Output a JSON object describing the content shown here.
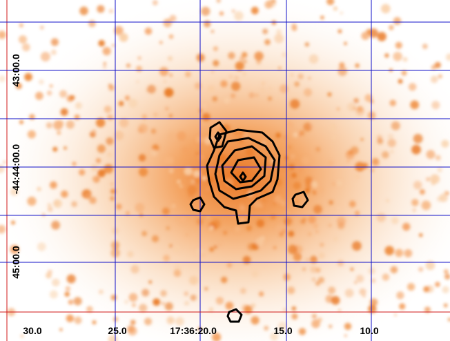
{
  "x_labels": [
    "30.0",
    "25.0",
    "17:36:20.0",
    "15.0",
    "10.0"
  ],
  "y_labels": [
    "43:00.0",
    "-44:44:00.0",
    "45:00.0"
  ]
}
